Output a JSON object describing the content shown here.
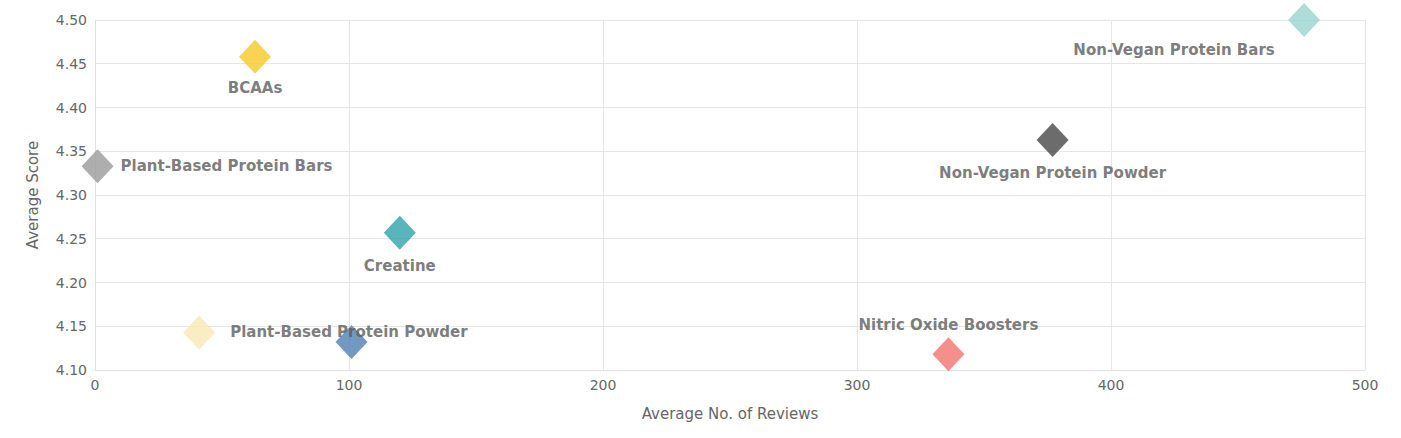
{
  "chart_data": {
    "type": "scatter",
    "x_label": "Average No. of Reviews",
    "y_label": "Average Score",
    "marker": "diamond",
    "grid": true,
    "xlim": [
      0,
      500
    ],
    "xticks": [
      0,
      100,
      200,
      300,
      400,
      500
    ],
    "ylim": [
      4.1,
      4.5
    ],
    "yticks": [
      {
        "value": 4.1,
        "label": "4.10"
      },
      {
        "value": 4.15,
        "label": "4.15"
      },
      {
        "value": 4.2,
        "label": "4.20"
      },
      {
        "value": 4.25,
        "label": "4.25"
      },
      {
        "value": 4.3,
        "label": "4.30"
      },
      {
        "value": 4.35,
        "label": "4.35"
      },
      {
        "value": 4.4,
        "label": "4.40"
      },
      {
        "value": 4.45,
        "label": "4.45"
      },
      {
        "value": 4.5,
        "label": "4.50"
      }
    ],
    "points": [
      {
        "name": "BCAAs",
        "x": 63,
        "y": 4.458,
        "color": "#f7c928"
      },
      {
        "name": "Plant-Based Protein Bars",
        "x": 1,
        "y": 4.333,
        "color": "#9a9a9a"
      },
      {
        "name": "Plant-Based Protein Powder",
        "x": 41,
        "y": 4.143,
        "color": "#f8e9b4"
      },
      {
        "name": null,
        "x": 101,
        "y": 4.132,
        "color": "#4d7fb3"
      },
      {
        "name": "Creatine",
        "x": 120,
        "y": 4.257,
        "color": "#2ea2aa"
      },
      {
        "name": "Nitric Oxide Boosters",
        "x": 336,
        "y": 4.118,
        "color": "#f2736f"
      },
      {
        "name": "Non-Vegan Protein Powder",
        "x": 377,
        "y": 4.363,
        "color": "#474747"
      },
      {
        "name": "Non-Vegan Protein Bars",
        "x": 476,
        "y": 4.5,
        "color": "#98d4d0"
      }
    ]
  }
}
